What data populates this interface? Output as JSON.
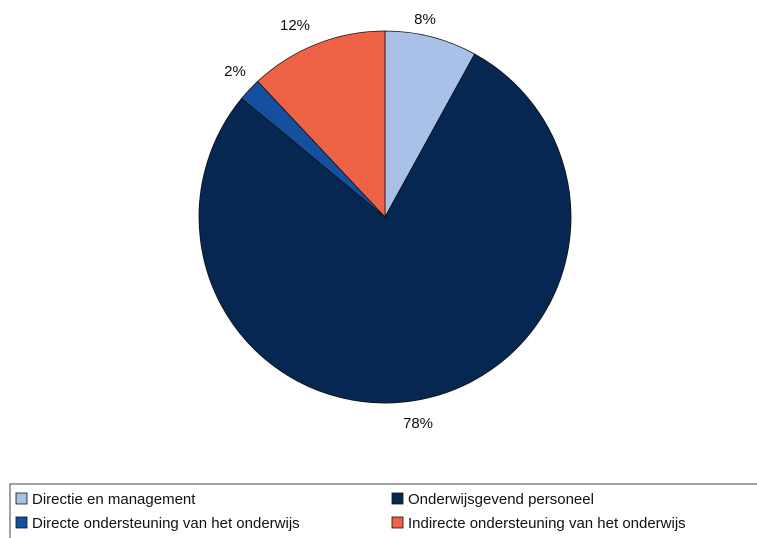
{
  "chart_data": {
    "type": "pie",
    "title": "",
    "start_angle_deg": 0,
    "direction": "clockwise",
    "legend_position": "bottom",
    "slices": [
      {
        "name": "Directie en management",
        "value": 8,
        "label": "8%",
        "color": "#a9c0e8"
      },
      {
        "name": "Onderwijsgevend personeel",
        "value": 78,
        "label": "78%",
        "color": "#052752"
      },
      {
        "name": "Directe ondersteuning van het onderwijs",
        "value": 2,
        "label": "2%",
        "color": "#14509e"
      },
      {
        "name": "Indirecte ondersteuning van het onderwijs",
        "value": 12,
        "label": "12%",
        "color": "#ee6245"
      }
    ],
    "slice_stroke": "#111111",
    "legend_columns": 2
  }
}
